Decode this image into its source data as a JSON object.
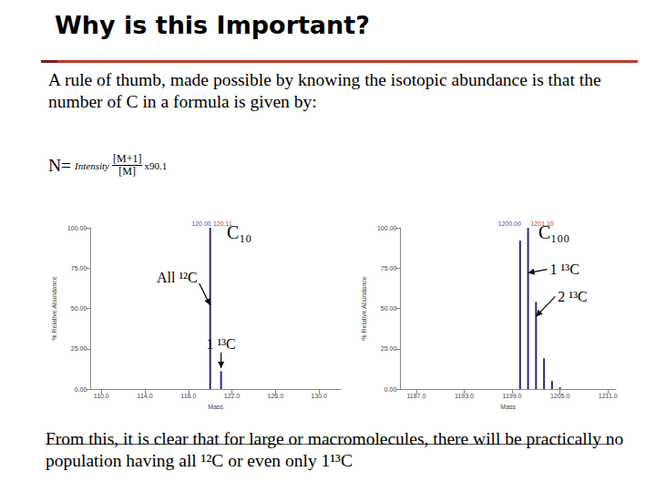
{
  "slide": {
    "title": "Why is this Important?",
    "body": "A rule of thumb, made possible by knowing the isotopic abundance is that the number of C in a formula is given by:",
    "formula": {
      "lhs": "N=",
      "word": "Intensity",
      "numerator": "[M+1]",
      "denominator": "[M]",
      "factor": "x90.1"
    },
    "conclusion": "From this, it is clear that for large or macromolecules, there will be practically no population having all ¹²C or even only 1¹³C"
  },
  "chart_data": [
    {
      "type": "bar",
      "title": "C₁₀",
      "x_label": "Mass",
      "y_label": "% Relative Abundance",
      "x": [
        120.0,
        121.0
      ],
      "values": [
        100,
        11
      ],
      "color": "#2a2a72",
      "xlim": [
        109,
        132
      ],
      "xticks": [
        {
          "value": 110,
          "label": "110.0"
        },
        {
          "value": 114,
          "label": "114.0"
        },
        {
          "value": 118,
          "label": "118.0"
        },
        {
          "value": 122,
          "label": "122.0"
        },
        {
          "value": 126,
          "label": "126.0"
        },
        {
          "value": 130,
          "label": "130.0"
        }
      ],
      "ylim": [
        0,
        100
      ],
      "yticks": [
        {
          "value": 0,
          "label": "0.00"
        },
        {
          "value": 25,
          "label": "25.00"
        },
        {
          "value": 50,
          "label": "50.00"
        },
        {
          "value": 75,
          "label": "75.00"
        },
        {
          "value": 100,
          "label": "100.00"
        }
      ],
      "grid": false,
      "annotations": [
        {
          "text": "120.00",
          "x": 120.0,
          "y": 100,
          "color": "#3a55d6"
        },
        {
          "text": "120.11",
          "x": 120.11,
          "y": 100,
          "color": "#e03030"
        },
        {
          "text": "All ¹²C",
          "arrow_to": [
            120.0,
            52
          ]
        },
        {
          "text": "1 ¹³C",
          "arrow_to": [
            121.0,
            13
          ]
        }
      ]
    },
    {
      "type": "bar",
      "title": "C₁₀₀",
      "x_label": "Mass",
      "y_label": "% Relative Abundance",
      "x": [
        1200.0,
        1201.0,
        1202.0,
        1203.0,
        1204.0,
        1205.0
      ],
      "values": [
        92,
        100,
        54,
        19,
        5,
        1
      ],
      "color": "#2a2a72",
      "xlim": [
        1185,
        1212
      ],
      "xticks": [
        {
          "value": 1187,
          "label": "1187.0"
        },
        {
          "value": 1193,
          "label": "1193.0"
        },
        {
          "value": 1199,
          "label": "1199.0"
        },
        {
          "value": 1205,
          "label": "1205.0"
        },
        {
          "value": 1211,
          "label": "1211.0"
        }
      ],
      "ylim": [
        0,
        100
      ],
      "yticks": [
        {
          "value": 0,
          "label": "0.00"
        },
        {
          "value": 25,
          "label": "25.00"
        },
        {
          "value": 50,
          "label": "50.00"
        },
        {
          "value": 75,
          "label": "75.00"
        },
        {
          "value": 100,
          "label": "100.00"
        }
      ],
      "grid": false,
      "annotations": [
        {
          "text": "1200.00",
          "x": 1200.0,
          "y": 100,
          "color": "#3a55d6"
        },
        {
          "text": "1201.10",
          "x": 1201.1,
          "y": 100,
          "color": "#e03030"
        },
        {
          "text": "1 ¹³C",
          "arrow_to": [
            1201.0,
            72
          ]
        },
        {
          "text": "2 ¹³C",
          "arrow_to": [
            1202.0,
            45
          ]
        }
      ]
    }
  ]
}
